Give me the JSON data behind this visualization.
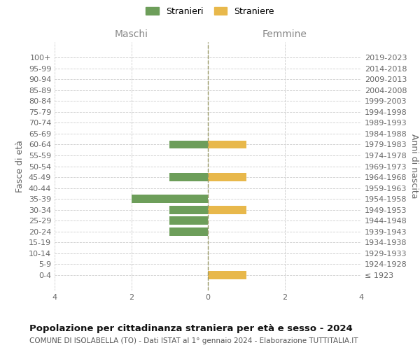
{
  "age_groups": [
    "100+",
    "95-99",
    "90-94",
    "85-89",
    "80-84",
    "75-79",
    "70-74",
    "65-69",
    "60-64",
    "55-59",
    "50-54",
    "45-49",
    "40-44",
    "35-39",
    "30-34",
    "25-29",
    "20-24",
    "15-19",
    "10-14",
    "5-9",
    "0-4"
  ],
  "birth_years": [
    "≤ 1923",
    "1924-1928",
    "1929-1933",
    "1934-1938",
    "1939-1943",
    "1944-1948",
    "1949-1953",
    "1954-1958",
    "1959-1963",
    "1964-1968",
    "1969-1973",
    "1974-1978",
    "1979-1983",
    "1984-1988",
    "1989-1993",
    "1994-1998",
    "1999-2003",
    "2004-2008",
    "2009-2013",
    "2014-2018",
    "2019-2023"
  ],
  "males": [
    0,
    0,
    0,
    0,
    0,
    0,
    0,
    0,
    1,
    0,
    0,
    1,
    0,
    2,
    1,
    1,
    1,
    0,
    0,
    0,
    0
  ],
  "females": [
    0,
    0,
    0,
    0,
    0,
    0,
    0,
    0,
    1,
    0,
    0,
    1,
    0,
    0,
    1,
    0,
    0,
    0,
    0,
    0,
    1
  ],
  "male_color": "#6d9e5a",
  "female_color": "#e8b84b",
  "male_label": "Stranieri",
  "female_label": "Straniere",
  "xlim": [
    -4,
    4
  ],
  "xticks": [
    -4,
    -2,
    0,
    2,
    4
  ],
  "xticklabels": [
    "4",
    "2",
    "0",
    "2",
    "4"
  ],
  "title_main": "Popolazione per cittadinanza straniera per età e sesso - 2024",
  "title_sub": "COMUNE DI ISOLABELLA (TO) - Dati ISTAT al 1° gennaio 2024 - Elaborazione TUTTITALIA.IT",
  "maschi_label": "Maschi",
  "femmine_label": "Femmine",
  "ylabel_left": "Fasce di età",
  "ylabel_right": "Anni di nascita",
  "background_color": "#ffffff",
  "grid_color": "#cccccc",
  "bar_height": 0.75
}
